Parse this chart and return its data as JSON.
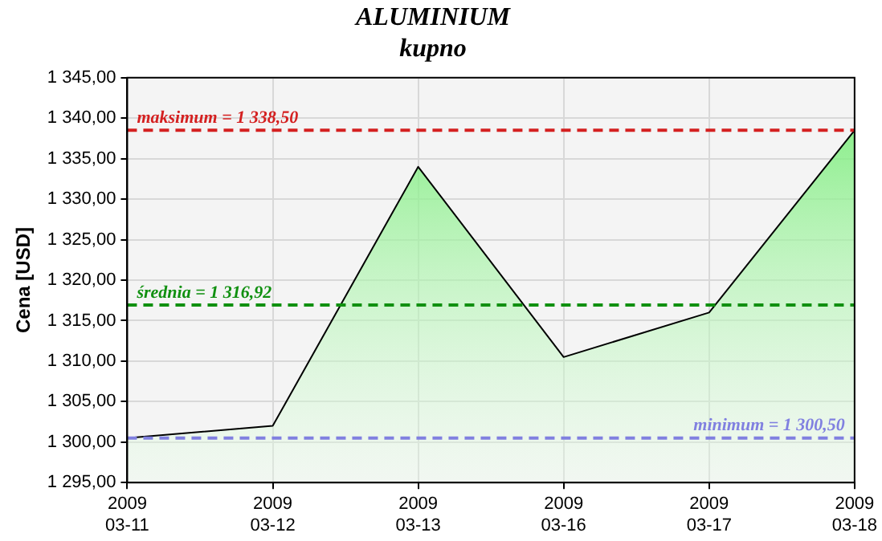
{
  "chart_data": {
    "type": "area",
    "title": "ALUMINIUM",
    "subtitle": "kupno",
    "ylabel": "Cena [USD]",
    "categories": [
      "2009 03-11",
      "2009 03-12",
      "2009 03-13",
      "2009 03-16",
      "2009 03-17",
      "2009 03-18"
    ],
    "series": [
      {
        "color": "#000000",
        "values": [
          1300.5,
          1302,
          1334,
          1310.5,
          1316,
          1338.5
        ]
      }
    ],
    "ylim": [
      1295,
      1345
    ],
    "yticks": [
      {
        "value": 1295,
        "label": "1 295,00"
      },
      {
        "value": 1300,
        "label": "1 300,00"
      },
      {
        "value": 1305,
        "label": "1 305,00"
      },
      {
        "value": 1310,
        "label": "1 310,00"
      },
      {
        "value": 1315,
        "label": "1 315,00"
      },
      {
        "value": 1320,
        "label": "1 320,00"
      },
      {
        "value": 1325,
        "label": "1 325,00"
      },
      {
        "value": 1330,
        "label": "1 330,00"
      },
      {
        "value": 1335,
        "label": "1 335,00"
      },
      {
        "value": 1340,
        "label": "1 340,00"
      },
      {
        "value": 1345,
        "label": "1 345,00"
      }
    ],
    "ref_lines": [
      {
        "axis": "y",
        "value": 1338.5,
        "label": "maksimum = 1 338,50",
        "color": "#d42020",
        "line_style": "dashed"
      },
      {
        "axis": "y",
        "value": 1316.92,
        "label": "średnia = 1 316,92",
        "color": "#109010",
        "line_style": "dashed"
      },
      {
        "axis": "y",
        "value": 1300.5,
        "label": "minimum = 1 300,50",
        "color": "#8080e0",
        "line_style": "dashed"
      }
    ],
    "grid": true,
    "legend": false
  }
}
